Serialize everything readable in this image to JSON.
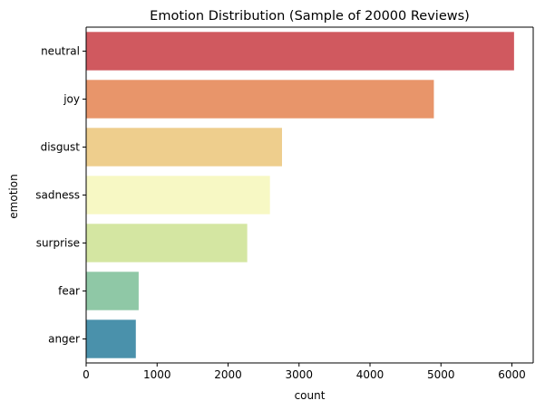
{
  "chart_data": {
    "type": "bar",
    "orientation": "horizontal",
    "title": "Emotion Distribution (Sample of 20000 Reviews)",
    "xlabel": "count",
    "ylabel": "emotion",
    "categories": [
      "neutral",
      "joy",
      "disgust",
      "sadness",
      "surprise",
      "fear",
      "anger"
    ],
    "values": [
      6030,
      4900,
      2760,
      2590,
      2270,
      740,
      700
    ],
    "colors": [
      "#d0595f",
      "#e8956a",
      "#eece8d",
      "#f7f8c4",
      "#d4e6a2",
      "#8fc8a6",
      "#4a91ab"
    ],
    "xlim": [
      0,
      6300
    ],
    "xticks": [
      0,
      1000,
      2000,
      3000,
      4000,
      5000,
      6000
    ],
    "grid": false,
    "legend": "none"
  }
}
